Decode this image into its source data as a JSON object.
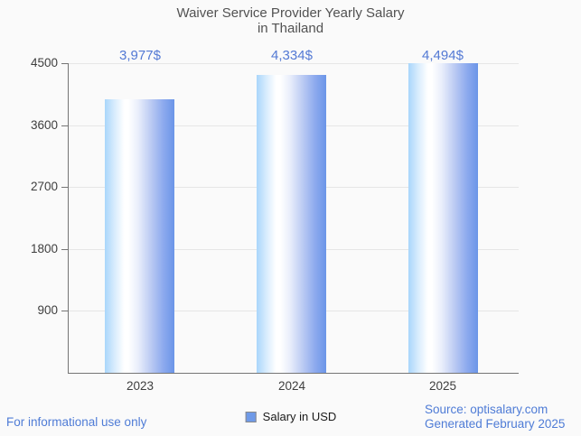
{
  "title": {
    "line1": "Waiver Service Provider Yearly Salary",
    "line2": "in Thailand"
  },
  "legend": {
    "label": "Salary in USD",
    "marker_color": "#6f9ae8"
  },
  "footer": {
    "left": "For informational use only",
    "source": "Source: optisalary.com",
    "generated": "Generated February 2025"
  },
  "colors": {
    "background": "#fafafa",
    "title_text": "#525252",
    "axis_label": "#3e3e3e",
    "value_label": "#5379d4",
    "footer_text": "#4f7cd6",
    "gridline": "#e6e6e6",
    "axis_line": "#757575",
    "bar_gradient_left": "#a9d6fb",
    "bar_gradient_mid": "#ffffff",
    "bar_gradient_right": "#6b95e8"
  },
  "chart_data": {
    "type": "bar",
    "title": "Waiver Service Provider Yearly Salary in Thailand",
    "categories": [
      "2023",
      "2024",
      "2025"
    ],
    "series": [
      {
        "name": "Salary in USD",
        "values": [
          3977,
          4334,
          4494
        ],
        "value_labels": [
          "3,977$",
          "4,334$",
          "4,494$"
        ]
      }
    ],
    "xlabel": "",
    "ylabel": "",
    "ylim": [
      0,
      4500
    ],
    "y_ticks": [
      900,
      1800,
      2700,
      3600,
      4500
    ],
    "grid": true,
    "legend_position": "bottom"
  }
}
